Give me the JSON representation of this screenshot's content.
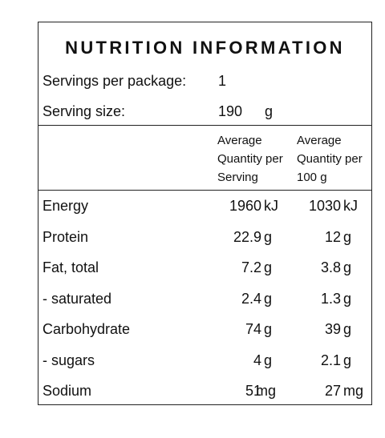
{
  "title": "NUTRITION INFORMATION",
  "servings": {
    "label": "Servings per package:",
    "value": "1"
  },
  "serving_size": {
    "label": "Serving size:",
    "value": "190",
    "unit": "g"
  },
  "columns": {
    "per_serving": [
      "Average",
      "Quantity per",
      "Serving"
    ],
    "per_100g": [
      "Average",
      "Quantity per",
      "100 g"
    ]
  },
  "rows": [
    {
      "label": "Energy",
      "serving": "1960",
      "serving_unit": "kJ",
      "per100": "1030",
      "per100_unit": "kJ"
    },
    {
      "label": "Protein",
      "serving": "22.9",
      "serving_unit": "g",
      "per100": "12",
      "per100_unit": "g"
    },
    {
      "label": "Fat, total",
      "serving": "7.2",
      "serving_unit": "g",
      "per100": "3.8",
      "per100_unit": "g"
    },
    {
      "label": "- saturated",
      "serving": "2.4",
      "serving_unit": "g",
      "per100": "1.3",
      "per100_unit": "g"
    },
    {
      "label": "Carbohydrate",
      "serving": "74",
      "serving_unit": "g",
      "per100": "39",
      "per100_unit": "g"
    },
    {
      "label": "- sugars",
      "serving": "4",
      "serving_unit": "g",
      "per100": "2.1",
      "per100_unit": "g"
    },
    {
      "label": "Sodium",
      "serving": "51",
      "serving_unit": "mg",
      "per100": "27",
      "per100_unit": "mg"
    }
  ]
}
